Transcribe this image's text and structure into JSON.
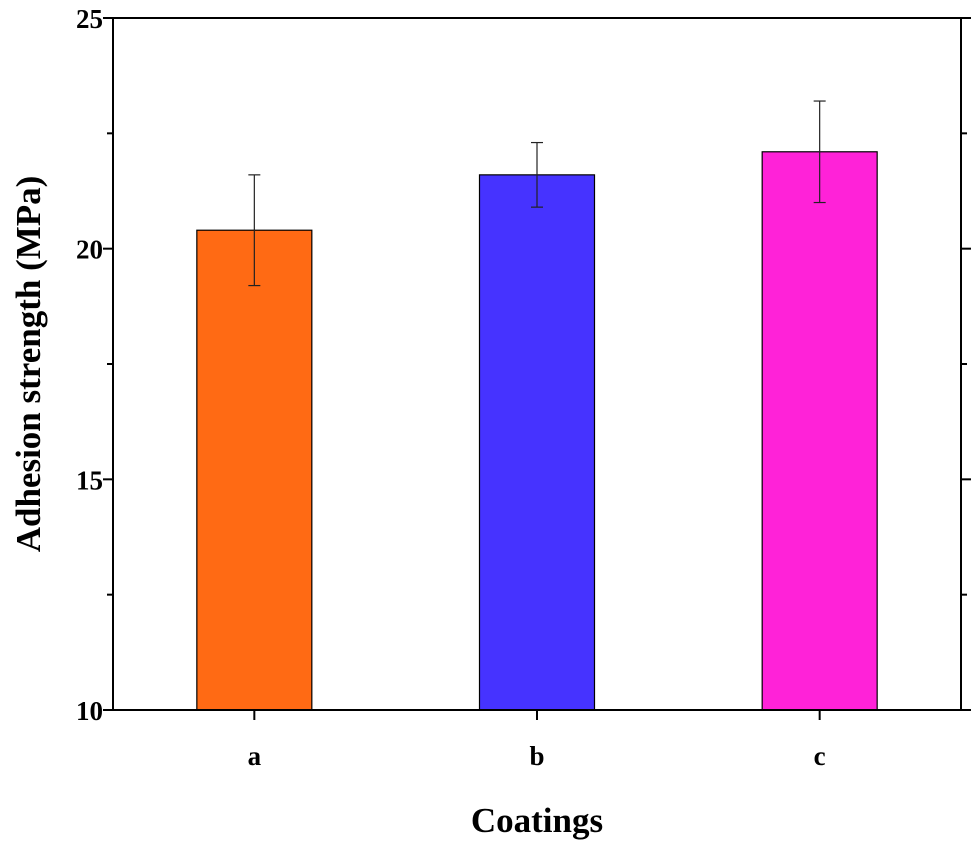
{
  "chart_data": {
    "type": "bar",
    "title": "",
    "xlabel": "Coatings",
    "ylabel": "Adhesion strength (MPa)",
    "categories": [
      "a",
      "b",
      "c"
    ],
    "values": [
      20.4,
      21.6,
      22.1
    ],
    "errors": [
      1.2,
      0.7,
      1.1
    ],
    "colors": [
      "#FF6A14",
      "#4633FF",
      "#FF22D8"
    ],
    "ylim": [
      10,
      25
    ],
    "yticks": [
      10,
      15,
      20,
      25
    ],
    "ytick_labels": [
      "10",
      "15",
      "20",
      "25"
    ],
    "grid": false,
    "legend": "none"
  }
}
